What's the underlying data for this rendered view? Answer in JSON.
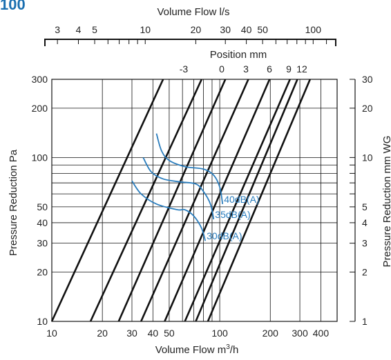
{
  "chart_data": {
    "type": "line",
    "title": "100",
    "colors": {
      "title": "#1a6fb0",
      "ink": "#111111",
      "sound": "#2a7dbd"
    },
    "x": {
      "label_main": "Volume Flow m",
      "label_sup": "3",
      "label_suffix": "/h",
      "scale": "log",
      "range": [
        10,
        500
      ],
      "tick_labels": [
        "10",
        "20",
        "30",
        "40",
        "50",
        "100",
        "200",
        "300",
        "400"
      ],
      "tick_values": [
        10,
        20,
        30,
        40,
        50,
        100,
        200,
        300,
        400
      ]
    },
    "y_left": {
      "label": "Pressure Reduction Pa",
      "scale": "log",
      "range": [
        10,
        300
      ],
      "tick_labels": [
        "10",
        "20",
        "30",
        "40",
        "50",
        "100",
        "200",
        "300"
      ],
      "tick_values": [
        10,
        20,
        30,
        40,
        50,
        100,
        200,
        300
      ]
    },
    "y_right": {
      "label": "Pressure Reduction mm WG",
      "tick_labels": [
        "1",
        "2",
        "3",
        "4",
        "5",
        "10",
        "20",
        "30"
      ],
      "tick_values": [
        1,
        2,
        3,
        4,
        5,
        10,
        20,
        30
      ]
    },
    "top_axis": {
      "label": "Volume Flow l/s",
      "tick_labels": [
        "3",
        "4",
        "5",
        "10",
        "20",
        "30",
        "40",
        "50",
        "100"
      ],
      "tick_values": [
        3,
        4,
        5,
        10,
        20,
        30,
        40,
        50,
        100
      ],
      "minor_ticks": [
        6,
        7,
        8,
        9,
        60,
        70,
        80,
        90,
        120
      ]
    },
    "position_axis": {
      "label": "Position mm",
      "tick_labels": [
        "-3",
        "0",
        "3",
        "6",
        "9",
        "12"
      ]
    },
    "series": [
      {
        "name": "-3",
        "points": [
          [
            10,
            10
          ],
          [
            46,
            300
          ]
        ]
      },
      {
        "name": "",
        "points": [
          [
            17,
            10
          ],
          [
            78,
            300
          ]
        ]
      },
      {
        "name": "",
        "points": [
          [
            25,
            10
          ],
          [
            108,
            300
          ]
        ]
      },
      {
        "name": "0",
        "points": [
          [
            34,
            10
          ],
          [
            148,
            300
          ]
        ]
      },
      {
        "name": "3",
        "points": [
          [
            47,
            10
          ],
          [
            198,
            300
          ]
        ]
      },
      {
        "name": "6",
        "points": [
          [
            62,
            10
          ],
          [
            262,
            300
          ]
        ]
      },
      {
        "name": "9",
        "points": [
          [
            72,
            10
          ],
          [
            290,
            300
          ]
        ]
      },
      {
        "name": "12",
        "points": [
          [
            85,
            10
          ],
          [
            345,
            300
          ]
        ]
      }
    ],
    "sound_curves": [
      {
        "name": "40dB(A)",
        "points": [
          [
            42,
            140
          ],
          [
            45,
            110
          ],
          [
            50,
            96
          ],
          [
            62,
            88
          ],
          [
            80,
            85
          ],
          [
            92,
            78
          ],
          [
            100,
            66
          ],
          [
            104,
            52
          ]
        ]
      },
      {
        "name": "35dB(A)",
        "points": [
          [
            35,
            100
          ],
          [
            39,
            82
          ],
          [
            46,
            74
          ],
          [
            58,
            71
          ],
          [
            72,
            69
          ],
          [
            80,
            62
          ],
          [
            88,
            52
          ],
          [
            92,
            42
          ]
        ]
      },
      {
        "name": "30dB(A)",
        "points": [
          [
            30,
            72
          ],
          [
            34,
            60
          ],
          [
            42,
            52
          ],
          [
            56,
            48
          ],
          [
            62,
            48
          ],
          [
            70,
            44
          ],
          [
            78,
            37
          ],
          [
            82,
            31
          ]
        ]
      }
    ],
    "grid": true,
    "legend": "none"
  }
}
